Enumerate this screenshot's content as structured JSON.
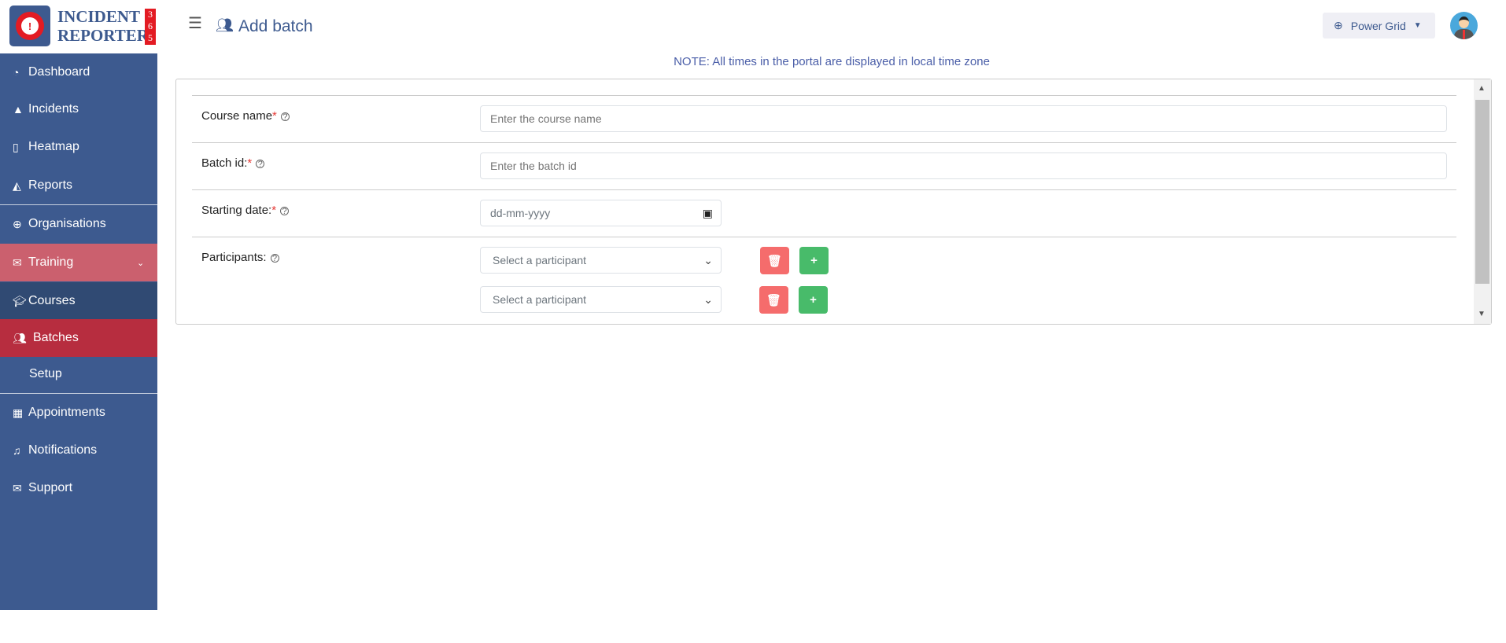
{
  "logo": {
    "line1": "INCIDENT",
    "line2": "REPORTER",
    "digits": "3 6 5"
  },
  "sidebar": {
    "items": [
      {
        "label": "Dashboard",
        "icon": "dashboard-icon"
      },
      {
        "label": "Incidents",
        "icon": "warning-icon"
      },
      {
        "label": "Heatmap",
        "icon": "map-icon"
      },
      {
        "label": "Reports",
        "icon": "chart-icon"
      },
      {
        "label": "Organisations",
        "icon": "globe-icon"
      },
      {
        "label": "Training",
        "icon": "envelope-icon",
        "expanded": true
      },
      {
        "label": "Courses",
        "icon": "graduation-cap-icon"
      },
      {
        "label": "Batches",
        "icon": "users-icon",
        "active": true
      },
      {
        "label": "Setup"
      },
      {
        "label": "Appointments",
        "icon": "calendar-icon"
      },
      {
        "label": "Notifications",
        "icon": "bell-icon"
      },
      {
        "label": "Support",
        "icon": "envelope-icon"
      }
    ]
  },
  "header": {
    "title": "Add batch",
    "org": "Power Grid"
  },
  "note": "NOTE: All times in the portal are displayed in local time zone",
  "form": {
    "course_name": {
      "label": "Course name",
      "placeholder": "Enter the course name"
    },
    "batch_id": {
      "label": "Batch id:",
      "placeholder": "Enter the batch id"
    },
    "starting_date": {
      "label": "Starting date:",
      "placeholder": "dd-mm-yyyy"
    },
    "participants": {
      "label": "Participants:",
      "rows": [
        {
          "placeholder": "Select a participant"
        },
        {
          "placeholder": "Select a participant"
        }
      ]
    },
    "required_mark": "*"
  },
  "colors": {
    "sidebar": "#3d5a8f",
    "training": "#cb606e",
    "courses": "#304a73",
    "batches": "#b72d3f",
    "delete": "#f56c6c",
    "add": "#48bb6a"
  }
}
